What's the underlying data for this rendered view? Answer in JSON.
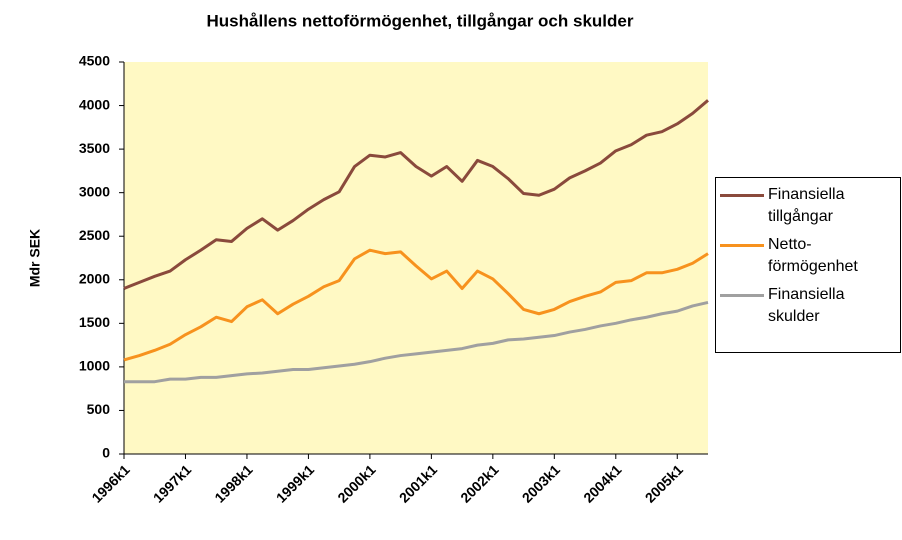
{
  "chart_data": {
    "type": "line",
    "title": "Hushållens nettoförmögenhet, tillgångar och skulder",
    "ylabel": "Mdr SEK",
    "categories": [
      "1996k1",
      null,
      null,
      null,
      "1997k1",
      null,
      null,
      null,
      "1998k1",
      null,
      null,
      null,
      "1999k1",
      null,
      null,
      null,
      "2000k1",
      null,
      null,
      null,
      "2001k1",
      null,
      null,
      null,
      "2002k1",
      null,
      null,
      null,
      "2003k1",
      null,
      null,
      null,
      "2004k1",
      null,
      null,
      null,
      "2005k1",
      null,
      null
    ],
    "series": [
      {
        "name": "Finansiella tillgångar",
        "color": "#8a4a3c",
        "values": [
          1900,
          1970,
          2040,
          2100,
          2230,
          2340,
          2460,
          2440,
          2590,
          2700,
          2570,
          2680,
          2810,
          2920,
          3010,
          3300,
          3430,
          3410,
          3460,
          3300,
          3190,
          3300,
          3130,
          3370,
          3300,
          3160,
          2990,
          2970,
          3040,
          3170,
          3250,
          3340,
          3480,
          3550,
          3660,
          3700,
          3790,
          3910,
          4060
        ]
      },
      {
        "name": "Netto-förmögenhet",
        "color": "#f7921e",
        "values": [
          1080,
          1130,
          1190,
          1260,
          1370,
          1460,
          1570,
          1520,
          1690,
          1770,
          1610,
          1720,
          1810,
          1920,
          1990,
          2240,
          2340,
          2300,
          2320,
          2160,
          2010,
          2100,
          1900,
          2100,
          2010,
          1840,
          1660,
          1610,
          1660,
          1750,
          1810,
          1860,
          1970,
          1990,
          2080,
          2080,
          2120,
          2190,
          2300
        ]
      },
      {
        "name": "Finansiella skulder",
        "color": "#a0a0a0",
        "values": [
          830,
          830,
          830,
          860,
          860,
          880,
          880,
          900,
          920,
          930,
          950,
          970,
          970,
          990,
          1010,
          1030,
          1060,
          1100,
          1130,
          1150,
          1170,
          1190,
          1210,
          1250,
          1270,
          1310,
          1320,
          1340,
          1360,
          1400,
          1430,
          1470,
          1500,
          1540,
          1570,
          1610,
          1640,
          1700,
          1740
        ]
      }
    ],
    "ylim": [
      0,
      4500
    ],
    "yticks": [
      0,
      500,
      1000,
      1500,
      2000,
      2500,
      3000,
      3500,
      4000,
      4500
    ],
    "plot_background": "#fff9c4",
    "grid": false,
    "legend": "right"
  }
}
